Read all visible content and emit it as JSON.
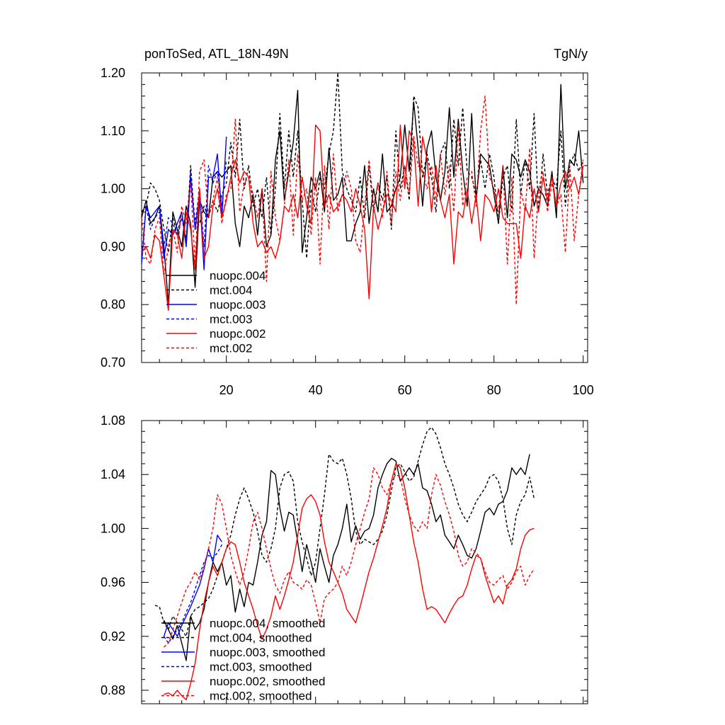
{
  "chart_data": [
    {
      "type": "line",
      "title": "ponToSed, ATL_18N-49N",
      "units": "TgN/y",
      "xlim": [
        1,
        101
      ],
      "ylim": [
        0.7,
        1.2
      ],
      "xticks": [
        20,
        40,
        60,
        80,
        100
      ],
      "xtick_labels": [
        "20",
        "40",
        "60",
        "80",
        "100"
      ],
      "yticks": [
        0.7,
        0.8,
        0.9,
        1.0,
        1.1,
        1.2
      ],
      "ytick_labels": [
        "0.70",
        "0.80",
        "0.90",
        "1.00",
        "1.10",
        "1.20"
      ],
      "legend_position": "lower-left",
      "series": [
        {
          "name": "nuopc.004",
          "color": "#000000",
          "dash": "solid",
          "x_start": 1,
          "values": [
            0.95,
            0.98,
            0.94,
            0.95,
            0.97,
            0.9,
            0.8,
            0.96,
            0.93,
            0.9,
            0.97,
            0.94,
            0.83,
            0.98,
            0.96,
            0.95,
            1.02,
            1.03,
            1.02,
            1.03,
            1.04,
            0.94,
            0.9,
            0.97,
            0.95,
            0.99,
            0.92,
            1.0,
            0.9,
            0.92,
            1.05,
            1.1,
            0.98,
            1.03,
            1.08,
            1.17,
            0.89,
            0.95,
            1.02,
            1.0,
            1.03,
            0.96,
            1.07,
            0.98,
            0.99,
            1.02,
            0.91,
            0.91,
            0.94,
            0.96,
            1.04,
            0.94,
            1.0,
            0.96,
            1.06,
            0.96,
            0.97,
            1.0,
            1.02,
            1.11,
            1.03,
            1.15,
            1.07,
            0.97,
            1.07,
            1.1,
            1.02,
            0.98,
            1.03,
            1.14,
            1.02,
            1.12,
            1.03,
            0.97,
            1.13,
            0.98,
            1.06,
            1.05,
            1.04,
            0.99,
            0.94,
            1.04,
            0.95,
            1.06,
            1.05,
            1.02,
            1.05,
            1.03,
            0.97,
            1.0,
            0.99,
            0.97,
            1.03,
            0.95,
            1.18,
            1.0,
            1.05,
            1.04,
            1.1,
            1.01
          ]
        },
        {
          "name": "mct.004",
          "color": "#000000",
          "dash": "dashed",
          "x_start": 1,
          "values": [
            0.96,
            0.97,
            1.01,
            1.0,
            0.98,
            0.93,
            0.89,
            0.95,
            0.92,
            0.96,
            0.91,
            1.04,
            0.93,
            0.94,
            0.97,
            0.95,
            0.98,
            0.96,
            0.99,
            1.01,
            1.08,
            1.02,
            1.12,
            1.0,
            1.04,
            0.97,
            1.0,
            0.95,
            1.02,
            0.92,
            1.0,
            1.13,
            1.0,
            1.1,
            1.02,
            1.1,
            0.98,
            0.88,
            1.0,
            0.96,
            1.02,
            1.0,
            1.06,
            1.1,
            1.2,
            1.03,
            1.0,
            0.98,
            0.96,
            1.02,
            0.95,
            1.04,
            0.96,
            1.01,
            0.98,
            1.02,
            0.93,
            1.1,
            1.0,
            1.04,
            0.98,
            1.16,
            1.14,
            1.02,
            1.06,
            1.02,
            0.96,
            1.06,
            1.08,
            1.0,
            1.12,
            1.04,
            1.14,
            1.03,
            1.02,
            0.99,
            1.05,
            1.0,
            1.06,
            1.02,
            0.94,
            1.02,
            1.04,
            0.96,
            1.12,
            0.99,
            1.05,
            1.0,
            1.13,
            0.96,
            1.06,
            0.99,
            1.02,
            1.0,
            1.1,
            0.97,
            1.04,
            1.06,
            1.03,
            1.05
          ]
        },
        {
          "name": "nuopc.003",
          "color": "#0000ff",
          "dash": "solid",
          "x_start": 1,
          "values": [
            0.87,
            0.97,
            0.95,
            0.96,
            0.97,
            0.88,
            0.93,
            0.92,
            0.94,
            0.96,
            0.9,
            1.02,
            0.93,
            0.99,
            0.86,
            1.02,
            1.02,
            1.06,
            0.95,
            1.09
          ]
        },
        {
          "name": "mct.003",
          "color": "#0000ff",
          "dash": "dashed",
          "x_start": 1,
          "values": [
            0.88,
            0.97,
            0.93,
            0.95,
            0.96,
            0.9,
            0.95,
            0.94,
            0.92,
            0.95,
            0.91,
            1.03,
            0.94,
            1.0,
            0.9,
            1.04,
            1.01,
            1.03,
            0.97,
            1.05
          ]
        },
        {
          "name": "nuopc.002",
          "color": "#ff0000",
          "dash": "solid",
          "x_start": 1,
          "values": [
            0.89,
            0.9,
            0.88,
            0.92,
            0.91,
            0.85,
            0.79,
            0.93,
            0.92,
            0.88,
            0.96,
            0.93,
            0.86,
            1.0,
            0.88,
            0.9,
            0.97,
            1.0,
            0.95,
            0.98,
            1.02,
            1.05,
            1.01,
            1.03,
            1.02,
            0.94,
            0.9,
            0.91,
            0.89,
            0.9,
            0.88,
            0.91,
            0.97,
            0.96,
            0.99,
            0.95,
            1.02,
            0.97,
            0.94,
            1.11,
            1.1,
            0.97,
            0.99,
            0.96,
            0.97,
            0.99,
            0.98,
            0.96,
            1.0,
            0.97,
            0.93,
            0.81,
            0.97,
            0.93,
            0.96,
            0.99,
            0.98,
            0.96,
            1.11,
            1.0,
            1.1,
            1.08,
            0.97,
            1.09,
            1.05,
            0.96,
            1.04,
            0.98,
            0.95,
            0.99,
            0.87,
            0.96,
            0.95,
            1.0,
            0.94,
            0.99,
            0.91,
            0.99,
            0.98,
            0.96,
            1.0,
            0.95,
            0.94,
            0.94,
            0.94,
            0.88,
            0.97,
            0.95,
            1.0,
            0.96,
            1.02,
            0.98,
            1.02,
            0.97,
            1.01,
            1.03,
            1.0,
            1.02,
            0.99,
            1.04
          ]
        },
        {
          "name": "mct.002",
          "color": "#ff0000",
          "dash": "dashed",
          "x_start": 1,
          "values": [
            0.95,
            0.88,
            0.87,
            0.93,
            0.95,
            0.85,
            0.9,
            0.93,
            0.89,
            0.97,
            0.94,
            1.01,
            0.87,
            1.03,
            1.05,
            0.95,
            0.98,
            1.02,
            0.94,
            0.99,
            1.0,
            1.12,
            0.96,
            1.01,
            1.02,
            0.99,
            0.95,
            1.0,
            0.84,
            1.03,
            0.95,
            0.91,
            0.97,
            1.05,
            0.92,
            1.06,
            0.98,
            1.0,
            0.92,
            1.02,
            0.87,
            1.04,
            0.93,
            1.06,
            0.96,
            0.99,
            1.03,
            1.0,
            0.91,
            0.89,
            0.97,
            1.05,
            0.97,
            1.01,
            0.95,
            1.03,
            0.94,
            1.03,
            0.98,
            1.04,
            0.99,
            1.09,
            1.04,
            1.03,
            1.0,
            1.04,
            0.98,
            1.06,
            0.99,
            1.04,
            0.96,
            1.11,
            0.97,
            1.02,
            1.03,
            0.97,
            1.1,
            1.16,
            1.02,
            1.0,
            0.96,
            1.04,
            0.87,
            1.02,
            0.8,
            1.0,
            0.96,
            1.07,
            0.88,
            1.0,
            1.03,
            0.96,
            1.01,
            0.97,
            0.99,
            0.89,
            1.04,
            0.91,
            0.99,
            1.05
          ]
        }
      ]
    },
    {
      "type": "line",
      "xlim": [
        1,
        101
      ],
      "ylim": [
        0.87,
        1.08
      ],
      "xticks": [
        20,
        40,
        60,
        80,
        100
      ],
      "yticks": [
        0.88,
        0.92,
        0.96,
        1.0,
        1.04,
        1.08
      ],
      "ytick_labels": [
        "0.88",
        "0.92",
        "0.96",
        "1.00",
        "1.04",
        "1.08"
      ],
      "legend_position": "lower-left",
      "series": [
        {
          "name": "nuopc.004, smoothed",
          "color": "#000000",
          "dash": "solid",
          "x_start": 6,
          "values": [
            0.932,
            0.925,
            0.918,
            0.928,
            0.915,
            0.902,
            0.935,
            0.925,
            0.93,
            0.94,
            0.96,
            0.975,
            0.968,
            0.975,
            0.958,
            0.965,
            0.938,
            0.955,
            0.942,
            0.96,
            0.958,
            0.975,
            0.995,
            1.005,
            1.043,
            1.04,
            1.015,
            0.998,
            1.012,
            1.01,
            0.99,
            0.968,
            0.988,
            0.975,
            0.96,
            0.985,
            0.972,
            0.96,
            0.98,
            0.988,
            1.0,
            1.018,
            0.99,
            1.002,
            0.992,
            0.998,
            1.0,
            1.01,
            1.03,
            1.04,
            1.048,
            1.052,
            1.05,
            1.035,
            1.04,
            1.045,
            1.04,
            1.048,
            1.03,
            1.028,
            1.018,
            1.005,
            1.01,
            0.995,
            0.99,
            0.985,
            0.995,
            0.988,
            0.98,
            0.978,
            0.985,
            0.998,
            1.012,
            1.015,
            1.01,
            1.018,
            1.02,
            1.028,
            1.045,
            1.04,
            1.045,
            1.04,
            1.055
          ]
        },
        {
          "name": "mct.004, smoothed",
          "color": "#000000",
          "dash": "dashed",
          "x_start": 4,
          "values": [
            0.943,
            0.942,
            0.93,
            0.925,
            0.935,
            0.93,
            0.925,
            0.92,
            0.935,
            0.94,
            0.942,
            0.945,
            0.948,
            0.955,
            0.965,
            0.975,
            0.985,
            0.995,
            1.01,
            1.022,
            1.03,
            1.022,
            1.012,
            0.998,
            0.98,
            0.975,
            0.985,
            1.0,
            1.03,
            1.04,
            1.042,
            1.035,
            1.005,
            0.99,
            0.978,
            0.965,
            0.975,
            1.0,
            1.025,
            1.055,
            1.05,
            1.048,
            1.052,
            1.04,
            1.022,
            0.998,
            0.988,
            0.992,
            0.99,
            0.988,
            0.992,
            0.998,
            1.01,
            1.028,
            1.045,
            1.048,
            1.042,
            1.035,
            1.038,
            1.05,
            1.062,
            1.072,
            1.075,
            1.07,
            1.06,
            1.048,
            1.04,
            1.03,
            1.018,
            1.01,
            1.005,
            1.012,
            1.02,
            1.025,
            1.03,
            1.038,
            1.04,
            1.035,
            1.022,
            1.0,
            0.988,
            1.01,
            1.02,
            1.025,
            1.038,
            1.022
          ]
        },
        {
          "name": "nuopc.003, smoothed",
          "color": "#0000ff",
          "dash": "solid",
          "x_start": 6,
          "values": [
            0.92,
            0.93,
            0.925,
            0.92,
            0.928,
            0.935,
            0.942,
            0.95,
            0.958,
            0.97,
            0.985,
            0.975,
            0.995,
            0.99
          ]
        },
        {
          "name": "mct.003, smoothed",
          "color": "#0000ff",
          "dash": "dashed",
          "x_start": 6,
          "values": [
            0.92,
            0.915,
            0.92,
            0.925,
            0.93,
            0.938,
            0.945,
            0.955,
            0.965,
            0.975,
            0.98,
            0.978,
            0.982,
            0.988
          ]
        },
        {
          "name": "nuopc.002, smoothed",
          "color": "#ff0000",
          "dash": "solid",
          "x_start": 6,
          "values": [
            0.877,
            0.878,
            0.876,
            0.88,
            0.876,
            0.873,
            0.885,
            0.9,
            0.925,
            0.945,
            0.96,
            0.972,
            0.965,
            0.975,
            0.985,
            0.99,
            0.988,
            0.975,
            0.96,
            0.95,
            0.94,
            0.928,
            0.918,
            0.925,
            0.935,
            0.95,
            0.94,
            0.95,
            0.962,
            0.975,
            0.995,
            1.015,
            1.022,
            1.025,
            1.02,
            1.01,
            0.99,
            0.975,
            0.968,
            0.96,
            0.952,
            0.94,
            0.935,
            0.93,
            0.942,
            0.955,
            0.968,
            0.978,
            0.99,
            1.002,
            1.015,
            1.035,
            1.048,
            1.045,
            1.03,
            1.01,
            0.99,
            0.975,
            0.955,
            0.94,
            0.942,
            0.94,
            0.935,
            0.93,
            0.937,
            0.943,
            0.948,
            0.95,
            0.958,
            0.97,
            0.98,
            0.978,
            0.965,
            0.955,
            0.945,
            0.95,
            0.944,
            0.958,
            0.962,
            0.97,
            0.985,
            0.995,
            0.999,
            1.0
          ]
        },
        {
          "name": "mct.002, smoothed",
          "color": "#ff0000",
          "dash": "dashed",
          "x_start": 6,
          "values": [
            0.912,
            0.915,
            0.925,
            0.935,
            0.945,
            0.955,
            0.96,
            0.968,
            0.962,
            0.972,
            0.985,
            1.0,
            1.025,
            1.018,
            1.0,
            0.98,
            0.968,
            0.958,
            0.968,
            0.985,
            1.005,
            1.012,
            1.0,
            0.985,
            0.97,
            0.958,
            0.952,
            0.962,
            0.968,
            0.96,
            0.958,
            0.955,
            0.962,
            0.958,
            0.945,
            0.93,
            0.948,
            0.952,
            0.955,
            0.96,
            0.972,
            0.965,
            0.975,
            0.988,
            1.0,
            1.012,
            1.022,
            1.045,
            1.04,
            1.03,
            1.025,
            1.035,
            1.04,
            1.038,
            1.022,
            1.01,
            1.002,
            0.998,
            1.005,
            1.0,
            1.025,
            1.04,
            1.032,
            1.02,
            1.01,
            0.998,
            0.98,
            0.972,
            0.975,
            0.985,
            0.982,
            0.978,
            0.968,
            0.96,
            0.958,
            0.962,
            0.965,
            0.955,
            0.96,
            0.968,
            0.972,
            0.958,
            0.965,
            0.97
          ]
        }
      ]
    }
  ]
}
